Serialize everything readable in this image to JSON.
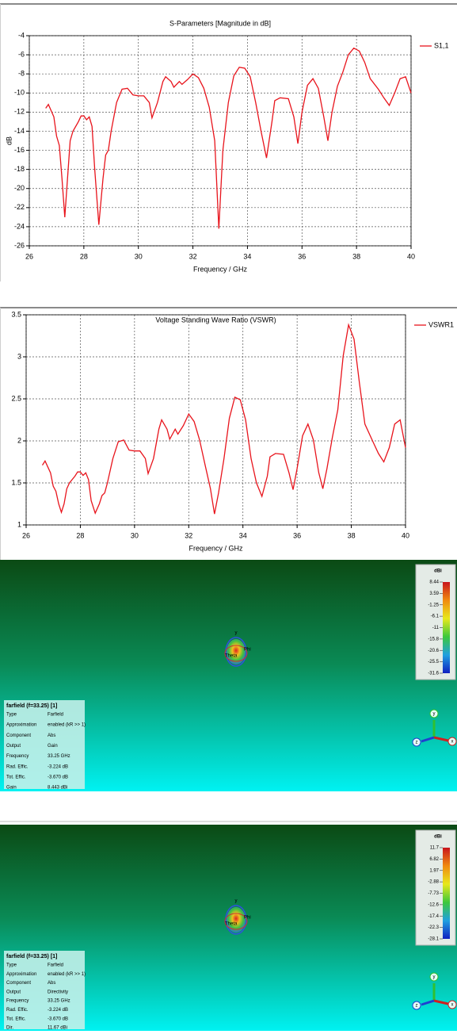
{
  "chart_data": [
    {
      "type": "line",
      "title": "S-Parameters [Magnitude in dB]",
      "x_label": "Frequency / GHz",
      "y_label": "dB",
      "x": [
        26.6,
        26.7,
        26.9,
        27.0,
        27.1,
        27.2,
        27.3,
        27.4,
        27.5,
        27.6,
        27.8,
        27.9,
        28.0,
        28.1,
        28.2,
        28.3,
        28.4,
        28.55,
        28.7,
        28.8,
        28.9,
        29.0,
        29.2,
        29.4,
        29.6,
        29.8,
        30.0,
        30.2,
        30.4,
        30.5,
        30.7,
        30.9,
        31.0,
        31.2,
        31.3,
        31.5,
        31.6,
        31.8,
        32.0,
        32.2,
        32.4,
        32.6,
        32.8,
        32.95,
        33.1,
        33.3,
        33.5,
        33.7,
        33.9,
        34.1,
        34.3,
        34.5,
        34.7,
        34.9,
        35.0,
        35.2,
        35.5,
        35.7,
        35.85,
        36.0,
        36.2,
        36.4,
        36.6,
        36.8,
        36.95,
        37.1,
        37.3,
        37.5,
        37.7,
        37.9,
        38.1,
        38.3,
        38.5,
        38.8,
        39.0,
        39.2,
        39.4,
        39.6,
        39.8,
        40.0
      ],
      "series": [
        {
          "name": "S1,1",
          "color": "#e8141c",
          "values": [
            -11.6,
            -11.2,
            -12.5,
            -14.5,
            -15.5,
            -19,
            -23,
            -19,
            -15,
            -14,
            -13,
            -12.4,
            -12.4,
            -12.8,
            -12.5,
            -13.5,
            -18,
            -23.8,
            -19,
            -16.5,
            -16,
            -14,
            -11,
            -9.6,
            -9.5,
            -10.2,
            -10.3,
            -10.3,
            -11,
            -12.6,
            -11,
            -8.8,
            -8.3,
            -8.8,
            -9.4,
            -8.8,
            -9.1,
            -8.6,
            -8.0,
            -8.4,
            -9.5,
            -11.5,
            -15,
            -24.2,
            -16,
            -11,
            -8.2,
            -7.3,
            -7.4,
            -8.3,
            -11,
            -14,
            -16.8,
            -13,
            -10.8,
            -10.5,
            -10.6,
            -12.5,
            -15.3,
            -12,
            -9.2,
            -8.5,
            -9.5,
            -12.5,
            -15,
            -12,
            -9.3,
            -7.8,
            -6,
            -5.3,
            -5.6,
            -6.8,
            -8.5,
            -9.6,
            -10.5,
            -11.3,
            -10,
            -8.5,
            -8.3,
            -10
          ]
        }
      ],
      "xlim": [
        26,
        40
      ],
      "xticks": [
        26,
        28,
        30,
        32,
        34,
        36,
        38,
        40
      ],
      "ylim": [
        -26,
        -4
      ],
      "yticks": [
        -4,
        -6,
        -8,
        -10,
        -12,
        -14,
        -16,
        -18,
        -20,
        -22,
        -24,
        -26
      ],
      "grid": true,
      "legend": "right"
    },
    {
      "type": "line",
      "title": "Voltage Standing Wave Ratio (VSWR)",
      "x_label": "Frequency / GHz",
      "x": [
        26.6,
        26.7,
        26.9,
        27.0,
        27.1,
        27.2,
        27.3,
        27.4,
        27.5,
        27.6,
        27.8,
        27.9,
        28.0,
        28.1,
        28.2,
        28.3,
        28.4,
        28.55,
        28.7,
        28.8,
        28.9,
        29.0,
        29.2,
        29.4,
        29.6,
        29.8,
        30.0,
        30.2,
        30.4,
        30.5,
        30.7,
        30.9,
        31.0,
        31.2,
        31.3,
        31.5,
        31.6,
        31.8,
        32.0,
        32.2,
        32.4,
        32.6,
        32.8,
        32.95,
        33.1,
        33.3,
        33.5,
        33.7,
        33.9,
        34.1,
        34.3,
        34.5,
        34.7,
        34.9,
        35.0,
        35.2,
        35.5,
        35.7,
        35.85,
        36.0,
        36.2,
        36.4,
        36.6,
        36.8,
        36.95,
        37.1,
        37.3,
        37.5,
        37.7,
        37.9,
        38.1,
        38.3,
        38.5,
        38.8,
        39.0,
        39.2,
        39.4,
        39.6,
        39.8,
        40.0
      ],
      "series": [
        {
          "name": "VSWR1",
          "color": "#e8141c",
          "values": [
            1.71,
            1.76,
            1.62,
            1.46,
            1.4,
            1.25,
            1.15,
            1.25,
            1.43,
            1.5,
            1.58,
            1.63,
            1.63,
            1.59,
            1.62,
            1.54,
            1.29,
            1.14,
            1.25,
            1.35,
            1.38,
            1.5,
            1.79,
            1.99,
            2.01,
            1.89,
            1.88,
            1.88,
            1.79,
            1.61,
            1.79,
            2.14,
            2.25,
            2.14,
            2.02,
            2.14,
            2.08,
            2.18,
            2.32,
            2.23,
            2.01,
            1.72,
            1.43,
            1.13,
            1.38,
            1.79,
            2.27,
            2.52,
            2.49,
            2.25,
            1.79,
            1.5,
            1.34,
            1.58,
            1.81,
            1.85,
            1.84,
            1.62,
            1.42,
            1.67,
            2.06,
            2.2,
            2.01,
            1.62,
            1.43,
            1.67,
            2.04,
            2.37,
            3.01,
            3.38,
            3.21,
            2.69,
            2.2,
            1.99,
            1.85,
            1.75,
            1.92,
            2.2,
            2.25,
            1.92
          ]
        }
      ],
      "xlim": [
        26,
        40
      ],
      "xticks": [
        26,
        28,
        30,
        32,
        34,
        36,
        38,
        40
      ],
      "ylim": [
        1,
        3.5
      ],
      "yticks": [
        1,
        1.5,
        2,
        2.5,
        3,
        3.5
      ],
      "grid": true,
      "legend": "right"
    }
  ],
  "farfield_panels": [
    {
      "unit": "dBi",
      "scale": [
        "8.44",
        "3.59",
        "-1.25",
        "-6.1",
        "-11",
        "-15.8",
        "-20.6",
        "-25.5",
        "-31.6"
      ],
      "title": "farfield (f=33.25) [1]",
      "rows": [
        [
          "Type",
          "Farfield"
        ],
        [
          "Approximation",
          "enabled (kR >> 1)"
        ],
        [
          "Component",
          "Abs"
        ],
        [
          "Output",
          "Gain"
        ],
        [
          "Frequency",
          "33.25 GHz"
        ],
        [
          "Rad. Effic.",
          "-3.224 dB"
        ],
        [
          "Tot. Effic.",
          "-3.670 dB"
        ],
        [
          "Gain",
          "8.443 dBi"
        ]
      ],
      "pattern_labels": [
        "y",
        "Phi",
        "Theta"
      ],
      "axes": [
        "y",
        "z",
        "x"
      ]
    },
    {
      "unit": "dBi",
      "scale": [
        "11.7",
        "6.82",
        "1.97",
        "-2.88",
        "-7.73",
        "-12.6",
        "-17.4",
        "-22.3",
        "-28.1"
      ],
      "title": "farfield (f=33.25) [1]",
      "rows": [
        [
          "Type",
          "Farfield"
        ],
        [
          "Approximation",
          "enabled (kR >> 1)"
        ],
        [
          "Component",
          "Abs"
        ],
        [
          "Output",
          "Directivity"
        ],
        [
          "Frequency",
          "33.25 GHz"
        ],
        [
          "Rad. Effic.",
          "-3.224 dB"
        ],
        [
          "Tot. Effic.",
          "-3.670 dB"
        ],
        [
          "Dir.",
          "11.67 dBi"
        ]
      ],
      "pattern_labels": [
        "y",
        "Phi",
        "Theta"
      ],
      "axes": [
        "y",
        "z",
        "x"
      ]
    }
  ]
}
